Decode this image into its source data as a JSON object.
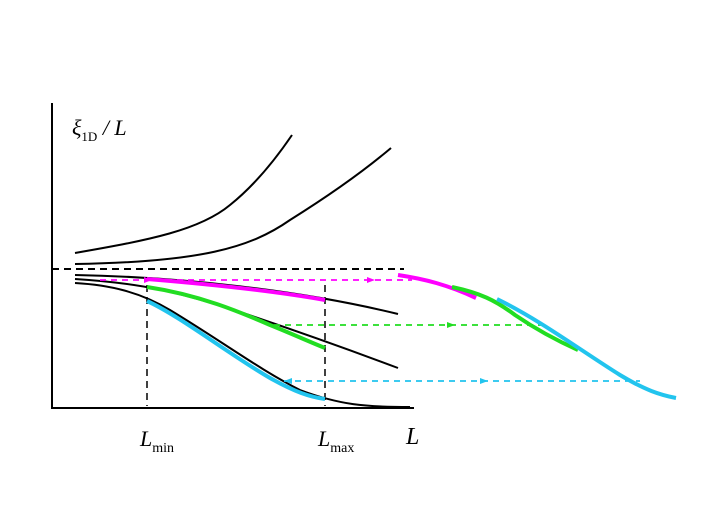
{
  "labels": {
    "y_axis": {
      "main": "ξ",
      "sub": "1D",
      "tail": " / L"
    },
    "x_axis": "L",
    "lmin": {
      "main": "L",
      "sub": "min"
    },
    "lmax": {
      "main": "L",
      "sub": "max"
    }
  },
  "colors": {
    "axis": "#000000",
    "curve": "#000000",
    "magenta": "#ff00ff",
    "green": "#22dd22",
    "cyan": "#22c4ee"
  }
}
